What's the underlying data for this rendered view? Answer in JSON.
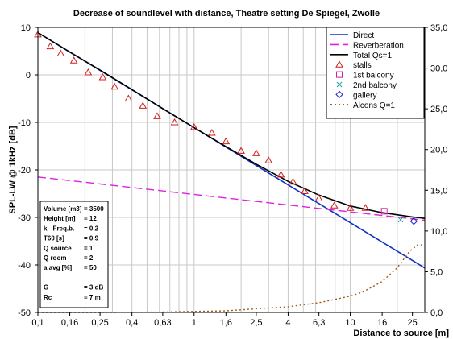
{
  "chart_data": {
    "type": "line",
    "title": "Decrease of soundlevel with distance, Theatre setting De Spiegel, Zwolle",
    "xlabel": "Distance to source [m]",
    "ylabel": "SPL-LW @ 1kHz [dB]",
    "xscale": "log",
    "xlim": [
      0.1,
      30
    ],
    "ylim": [
      -50,
      10
    ],
    "y2lim": [
      0,
      35
    ],
    "x_ticks": [
      0.1,
      0.16,
      0.25,
      0.4,
      0.63,
      1,
      1.6,
      2.5,
      4,
      6.3,
      10,
      16,
      25
    ],
    "x_tick_labels": [
      "0,1",
      "0,16",
      "0,25",
      "0,4",
      "0,63",
      "1",
      "1,6",
      "2,5",
      "4",
      "6,3",
      "10",
      "16",
      "25"
    ],
    "y_ticks": [
      10,
      0,
      -10,
      -20,
      -30,
      -40,
      -50
    ],
    "y_tick_labels": [
      "10",
      "0",
      "-10",
      "-20",
      "-30",
      "-40",
      "-50"
    ],
    "y2_ticks": [
      35,
      30,
      25,
      20,
      15,
      10,
      5,
      0
    ],
    "y2_tick_labels": [
      "35,0",
      "30,0",
      "25,0",
      "20,0",
      "15,0",
      "10,0",
      "5,0",
      "0,0"
    ],
    "grid": true,
    "legend_position": "top-right",
    "series": [
      {
        "name": "Direct",
        "kind": "line",
        "color": "#1030c0",
        "style": "solid",
        "x": [
          0.1,
          30
        ],
        "y": [
          8.89,
          -40.65
        ]
      },
      {
        "name": "Reverberation",
        "kind": "line",
        "color": "#e020e0",
        "style": "dashed",
        "x": [
          0.1,
          30
        ],
        "y": [
          -21.5,
          -30.6
        ]
      },
      {
        "name": "Total Qs=1",
        "kind": "line",
        "color": "#000000",
        "style": "solid",
        "x": [
          0.1,
          0.16,
          0.25,
          0.4,
          0.63,
          1,
          1.6,
          2.5,
          4,
          6.3,
          10,
          16,
          25,
          30
        ],
        "y": [
          8.9,
          4.8,
          1.0,
          -3.1,
          -7.1,
          -11.1,
          -15.1,
          -18.8,
          -22.4,
          -25.3,
          -27.6,
          -29.0,
          -29.9,
          -30.2
        ]
      },
      {
        "name": "stalls",
        "kind": "marker",
        "marker": "triangle",
        "color": "#d02020",
        "x": [
          0.1,
          0.12,
          0.14,
          0.17,
          0.21,
          0.26,
          0.31,
          0.38,
          0.47,
          0.58,
          0.75,
          1.0,
          1.3,
          1.6,
          2.0,
          2.5,
          3.0,
          3.6,
          4.3,
          5.1,
          6.3,
          7.9,
          10.0,
          12.5
        ],
        "y": [
          8.5,
          6.0,
          4.5,
          3.0,
          0.5,
          -0.5,
          -2.5,
          -5.0,
          -6.5,
          -8.7,
          -10.0,
          -11.0,
          -12.2,
          -14.0,
          -16.0,
          -16.5,
          -18.0,
          -21.0,
          -22.5,
          -24.5,
          -26.0,
          -27.5,
          -28.0,
          -28.0
        ]
      },
      {
        "name": "1st balcony",
        "kind": "marker",
        "marker": "square",
        "color": "#d020a0",
        "x": [
          16.5
        ],
        "y": [
          -28.7
        ]
      },
      {
        "name": "2nd balcony",
        "kind": "marker",
        "marker": "x",
        "color": "#20a0a0",
        "x": [
          21.0
        ],
        "y": [
          -30.5
        ]
      },
      {
        "name": "gallery",
        "kind": "marker",
        "marker": "diamond",
        "color": "#2020d0",
        "x": [
          25.5
        ],
        "y": [
          -30.8
        ]
      },
      {
        "name": "Alcons Q=1",
        "kind": "line",
        "color": "#a05a1e",
        "style": "dotted",
        "axis": "y2",
        "x": [
          0.1,
          0.25,
          0.63,
          1.6,
          4,
          6.3,
          10,
          12,
          16,
          20,
          24,
          27,
          30
        ],
        "y": [
          0.0,
          0.0,
          0.05,
          0.2,
          0.7,
          1.2,
          2.0,
          2.5,
          3.8,
          5.5,
          7.5,
          8.3,
          8.3
        ]
      }
    ],
    "info_box": {
      "lines": [
        {
          "label": "Volume [m3]",
          "value": "= 3500"
        },
        {
          "label": "Height [m]",
          "value": "= 12"
        },
        {
          "label": "k - Freq.b.",
          "value": "= 0.2"
        },
        {
          "label": "T60 [s]",
          "value": "= 0.9"
        },
        {
          "label": "Q source",
          "value": "= 1"
        },
        {
          "label": "Q room",
          "value": "= 2"
        },
        {
          "label": "a  avg [%]",
          "value": "= 50"
        },
        {
          "label": "",
          "value": ""
        },
        {
          "label": "G",
          "value": "= 3 dB"
        },
        {
          "label": "Rc",
          "value": "= 7 m"
        }
      ]
    }
  }
}
